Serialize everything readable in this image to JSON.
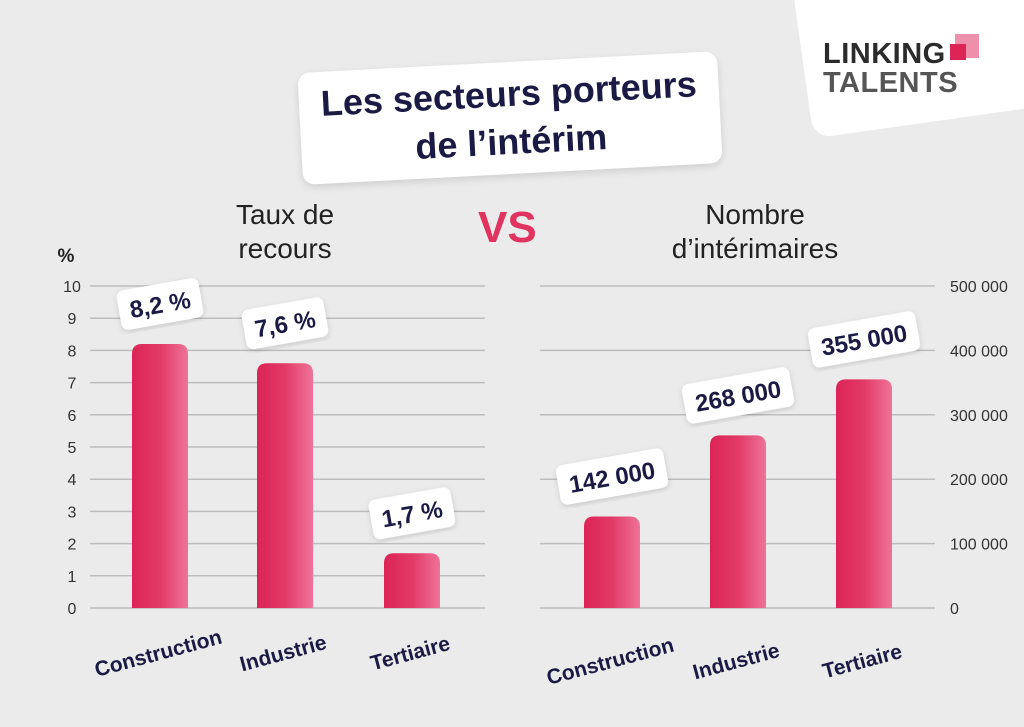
{
  "title": "Les secteurs porteurs de l’intérim",
  "title_lines": [
    "Les secteurs porteurs",
    "de l’intérim"
  ],
  "logo": {
    "line1": "LINKING",
    "line2": "TALENTS"
  },
  "vs": "VS",
  "colors": {
    "bar": "#dc2456",
    "bar_light": "#ee6f93",
    "background": "#ebebeb",
    "label_text": "#1a1a44"
  },
  "chart_data": [
    {
      "type": "bar",
      "title_lines": [
        "Taux de",
        "recours"
      ],
      "ylabel": "%",
      "categories": [
        "Construction",
        "Industrie",
        "Tertiaire"
      ],
      "values": [
        8.2,
        7.6,
        1.7
      ],
      "data_labels": [
        "8,2 %",
        "7,6 %",
        "1,7 %"
      ],
      "ylim": [
        0,
        10
      ],
      "yticks": [
        "0",
        "1",
        "2",
        "3",
        "4",
        "5",
        "6",
        "7",
        "8",
        "9",
        "10"
      ],
      "grid": true,
      "axis_side": "left"
    },
    {
      "type": "bar",
      "title_lines": [
        "Nombre",
        "d’intérimaires"
      ],
      "categories": [
        "Construction",
        "Industrie",
        "Tertiaire"
      ],
      "values": [
        142000,
        268000,
        355000
      ],
      "data_labels": [
        "142 000",
        "268 000",
        "355 000"
      ],
      "ylim": [
        0,
        500000
      ],
      "yticks": [
        "0",
        "100 000",
        "200 000",
        "300 000",
        "400 000",
        "500 000"
      ],
      "grid": true,
      "axis_side": "right"
    }
  ]
}
